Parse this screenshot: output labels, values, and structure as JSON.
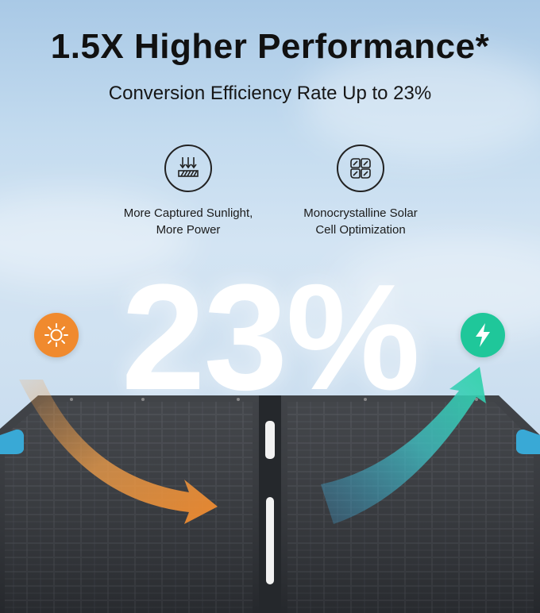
{
  "headline": "1.5X Higher Performance*",
  "subheadline": "Conversion Efficiency Rate Up to 23%",
  "features": [
    {
      "icon": "sunlight-absorption-icon",
      "line1": "More Captured Sunlight,",
      "line2": "More Power"
    },
    {
      "icon": "monocrystalline-cell-icon",
      "line1": "Monocrystalline Solar",
      "line2": "Cell Optimization"
    }
  ],
  "big_stat": "23%",
  "left_badge": {
    "icon": "sun-icon",
    "color": "#f08a2e"
  },
  "right_badge": {
    "icon": "lightning-bolt-icon",
    "color": "#1fc79a"
  },
  "colors": {
    "panel": "#34373d",
    "arrow_orange": "#f3a04a",
    "arrow_teal": "#3fc6c8",
    "tab_blue": "#39a9d6"
  }
}
